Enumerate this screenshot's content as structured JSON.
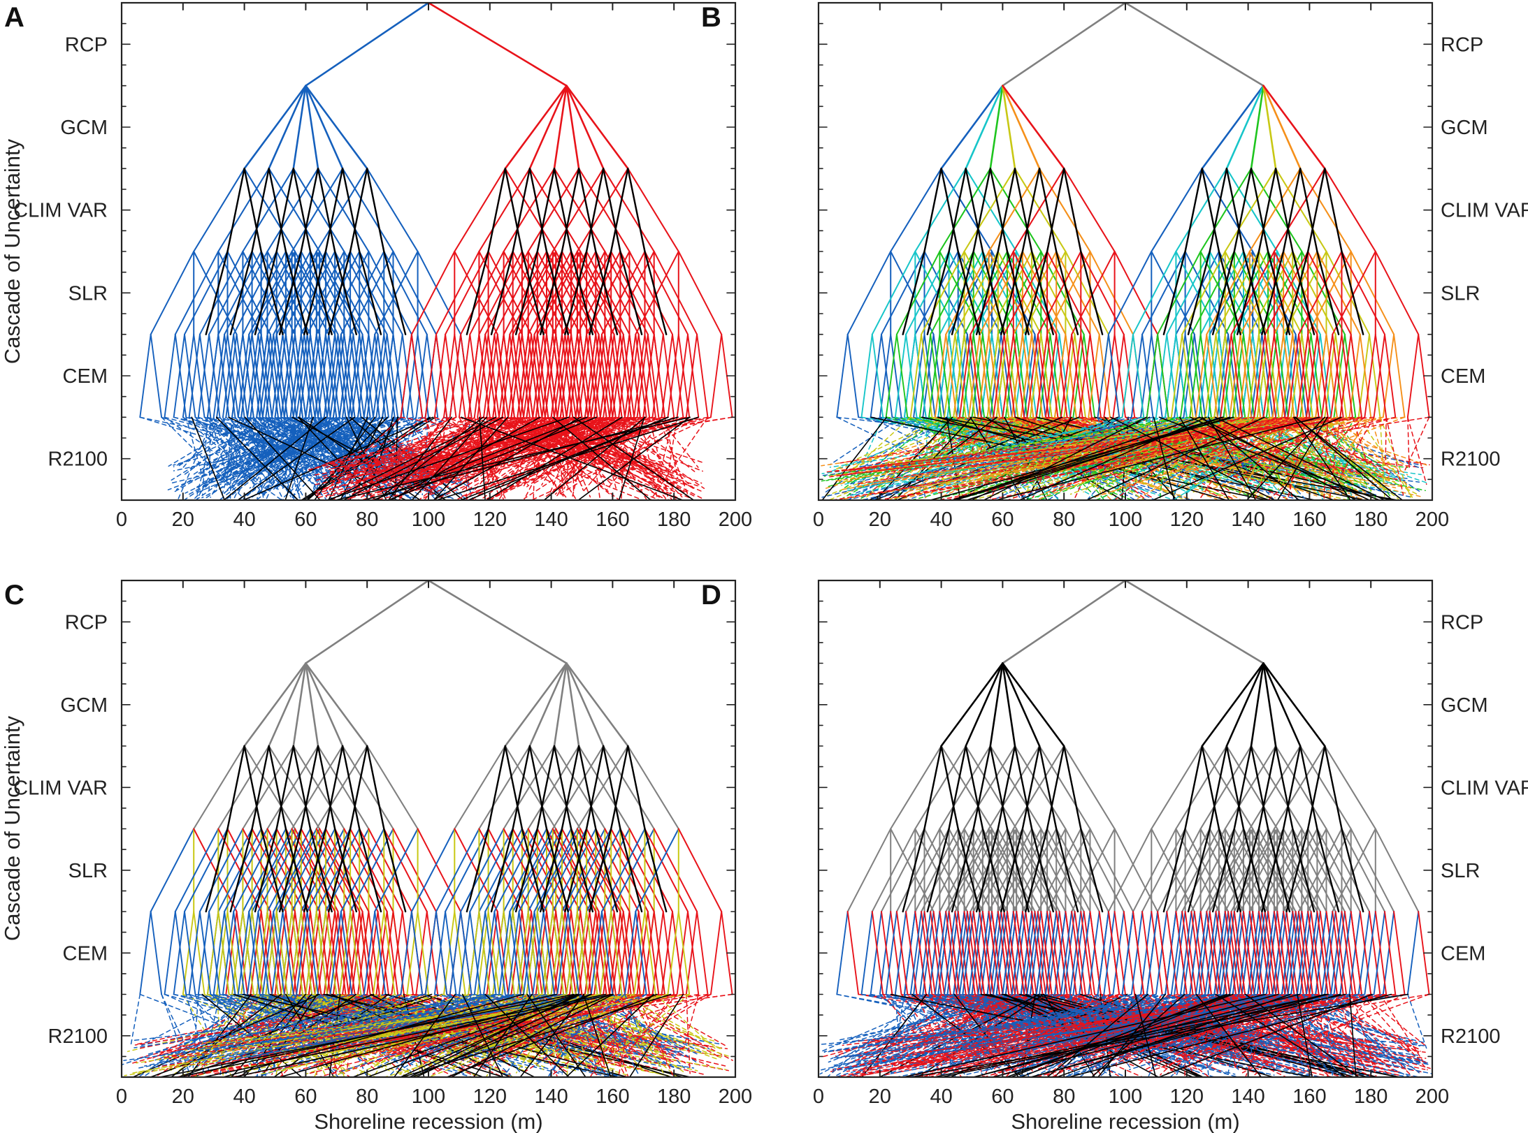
{
  "figure": {
    "y_axis_label": "Cascade of Uncertainty",
    "x_axis_label": "Shoreline recession (m)"
  },
  "chart_data": [
    {
      "type": "tree",
      "panel": "A",
      "xlabel": "Shoreline recession (m)",
      "ylabel": "Cascade of Uncertainty",
      "xlim": [
        0,
        200
      ],
      "xticks": [
        0,
        20,
        40,
        60,
        80,
        100,
        120,
        140,
        160,
        180,
        200
      ],
      "levels": [
        "RCP",
        "GCM",
        "CLIM VAR",
        "SLR",
        "CEM",
        "R2100"
      ],
      "level_labels_side": "left",
      "root_x": 100,
      "rcp_branch_x": [
        60,
        145
      ],
      "gcm_branch_x": [
        [
          40,
          48,
          56,
          64,
          72,
          80
        ],
        [
          125,
          133,
          141,
          149,
          157,
          165
        ]
      ],
      "clim_var_spread": 11,
      "slr_spread": 14,
      "cem_spread": 7,
      "r2100_range": [
        [
          15,
          115
        ],
        [
          60,
          190
        ]
      ],
      "coloring": "RCP",
      "colors": [
        "#1560bd",
        "#e8131a"
      ]
    },
    {
      "type": "tree",
      "panel": "B",
      "xlabel": "Shoreline recession (m)",
      "xlim": [
        0,
        200
      ],
      "xticks": [
        0,
        20,
        40,
        60,
        80,
        100,
        120,
        140,
        160,
        180,
        200
      ],
      "levels": [
        "RCP",
        "GCM",
        "CLIM VAR",
        "SLR",
        "CEM",
        "R2100"
      ],
      "level_labels_side": "right",
      "root_x": 100,
      "rcp_branch_x": [
        60,
        145
      ],
      "gcm_branch_x": [
        [
          40,
          48,
          56,
          64,
          72,
          80
        ],
        [
          125,
          133,
          141,
          149,
          157,
          165
        ]
      ],
      "clim_var_spread": 11,
      "slr_spread": 14,
      "cem_spread": 7,
      "r2100_range": [
        [
          0,
          200
        ],
        [
          0,
          200
        ]
      ],
      "coloring": "GCM",
      "colors": [
        "#1560bd",
        "#17c5c9",
        "#1ec51e",
        "#c8c814",
        "#f5901a",
        "#e8131a"
      ]
    },
    {
      "type": "tree",
      "panel": "C",
      "xlabel": "Shoreline recession (m)",
      "ylabel": "Cascade of Uncertainty",
      "xlim": [
        0,
        200
      ],
      "xticks": [
        0,
        20,
        40,
        60,
        80,
        100,
        120,
        140,
        160,
        180,
        200
      ],
      "levels": [
        "RCP",
        "GCM",
        "CLIM VAR",
        "SLR",
        "CEM",
        "R2100"
      ],
      "level_labels_side": "left",
      "root_x": 100,
      "rcp_branch_x": [
        60,
        145
      ],
      "gcm_branch_x": [
        [
          40,
          48,
          56,
          64,
          72,
          80
        ],
        [
          125,
          133,
          141,
          149,
          157,
          165
        ]
      ],
      "clim_var_spread": 11,
      "slr_spread": 14,
      "cem_spread": 7,
      "r2100_range": [
        [
          0,
          200
        ],
        [
          0,
          200
        ]
      ],
      "coloring": "SLR",
      "colors": [
        "#1560bd",
        "#c8c814",
        "#e8131a"
      ]
    },
    {
      "type": "tree",
      "panel": "D",
      "xlabel": "Shoreline recession (m)",
      "xlim": [
        0,
        200
      ],
      "xticks": [
        0,
        20,
        40,
        60,
        80,
        100,
        120,
        140,
        160,
        180,
        200
      ],
      "levels": [
        "RCP",
        "GCM",
        "CLIM VAR",
        "SLR",
        "CEM",
        "R2100"
      ],
      "level_labels_side": "right",
      "root_x": 100,
      "rcp_branch_x": [
        60,
        145
      ],
      "gcm_branch_x": [
        [
          40,
          48,
          56,
          64,
          72,
          80
        ],
        [
          125,
          133,
          141,
          149,
          157,
          165
        ]
      ],
      "clim_var_spread": 11,
      "slr_spread": 14,
      "cem_spread": 7,
      "r2100_range": [
        [
          0,
          200
        ],
        [
          0,
          200
        ]
      ],
      "coloring": "CEM",
      "colors": [
        "#1560bd",
        "#e8131a"
      ]
    }
  ]
}
